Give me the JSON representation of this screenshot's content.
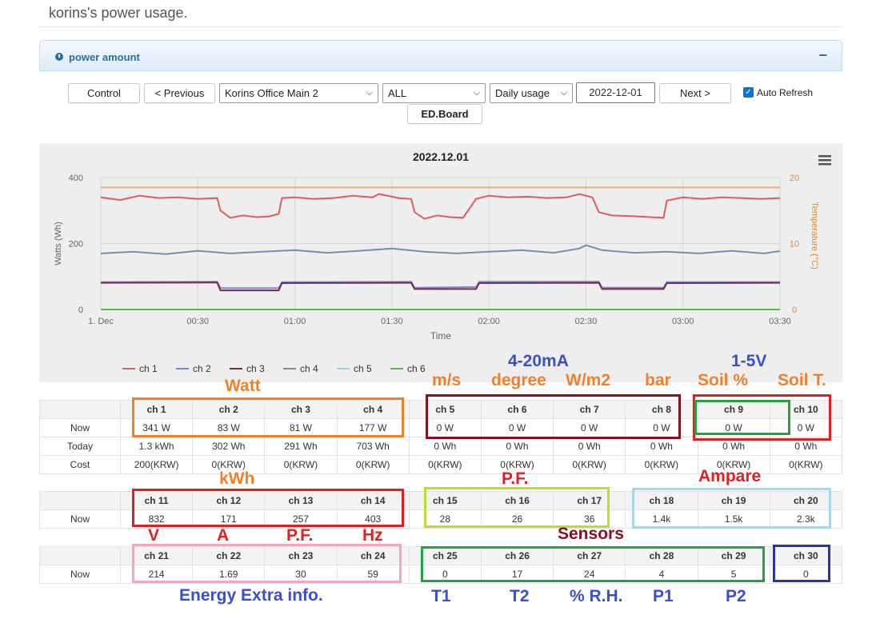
{
  "page": {
    "title": "korins's power usage."
  },
  "panel": {
    "title": "power amount",
    "collapse_label": "−"
  },
  "toolbar": {
    "control_label": "Control",
    "previous_label": "< Previous",
    "device_select": "Korins Office Main  2",
    "channel_select": "ALL",
    "period_select": "Daily usage",
    "date": "2022-12-01",
    "next_label": "Next >",
    "auto_refresh_label": "Auto Refresh",
    "auto_refresh_checked": true,
    "edboard_label": "ED.Board"
  },
  "chart_data": {
    "type": "line",
    "title": "2022.12.01",
    "xlabel": "Time",
    "ylabel": "Watts (Wh)",
    "ylabel_right": "Temperature (°C)",
    "ylim": [
      0,
      400
    ],
    "ylim_right": [
      0,
      20
    ],
    "yticks": [
      "0",
      "200",
      "400"
    ],
    "yticks_right": [
      "0",
      "10",
      "20"
    ],
    "x_minutes_range": [
      0,
      210
    ],
    "xticks": [
      {
        "label": "1. Dec",
        "minute": 0
      },
      {
        "label": "00:30",
        "minute": 30
      },
      {
        "label": "01:00",
        "minute": 60
      },
      {
        "label": "01:30",
        "minute": 90
      },
      {
        "label": "02:00",
        "minute": 120
      },
      {
        "label": "02:30",
        "minute": 150
      },
      {
        "label": "03:00",
        "minute": 180
      },
      {
        "label": "03:30",
        "minute": 210
      }
    ],
    "legend_position": "bottom",
    "grid": true,
    "menu_icon": "hamburger-icon",
    "series": [
      {
        "name": "ch 1",
        "color": "#e05c5c",
        "axis": "left",
        "points": [
          [
            0,
            340
          ],
          [
            6,
            332
          ],
          [
            12,
            345
          ],
          [
            18,
            338
          ],
          [
            24,
            340
          ],
          [
            30,
            335
          ],
          [
            36,
            338
          ],
          [
            37,
            300
          ],
          [
            40,
            278
          ],
          [
            44,
            285
          ],
          [
            48,
            280
          ],
          [
            52,
            282
          ],
          [
            55,
            290
          ],
          [
            56,
            338
          ],
          [
            60,
            340
          ],
          [
            66,
            335
          ],
          [
            72,
            338
          ],
          [
            78,
            345
          ],
          [
            84,
            340
          ],
          [
            86,
            350
          ],
          [
            90,
            342
          ],
          [
            92,
            338
          ],
          [
            96,
            335
          ],
          [
            97,
            295
          ],
          [
            100,
            275
          ],
          [
            104,
            285
          ],
          [
            108,
            280
          ],
          [
            112,
            278
          ],
          [
            116,
            335
          ],
          [
            120,
            345
          ],
          [
            126,
            340
          ],
          [
            132,
            342
          ],
          [
            138,
            338
          ],
          [
            144,
            340
          ],
          [
            148,
            350
          ],
          [
            150,
            345
          ],
          [
            152,
            340
          ],
          [
            154,
            295
          ],
          [
            158,
            285
          ],
          [
            164,
            283
          ],
          [
            170,
            280
          ],
          [
            174,
            278
          ],
          [
            175,
            330
          ],
          [
            180,
            340
          ],
          [
            186,
            335
          ],
          [
            192,
            340
          ],
          [
            198,
            338
          ],
          [
            204,
            335
          ],
          [
            210,
            338
          ]
        ]
      },
      {
        "name": "ch 2",
        "color": "#7a88d8",
        "axis": "left",
        "points": [
          [
            0,
            83
          ],
          [
            36,
            84
          ],
          [
            37,
            65
          ],
          [
            55,
            65
          ],
          [
            56,
            83
          ],
          [
            96,
            84
          ],
          [
            97,
            66
          ],
          [
            116,
            68
          ],
          [
            117,
            84
          ],
          [
            154,
            84
          ],
          [
            155,
            66
          ],
          [
            174,
            66
          ],
          [
            175,
            83
          ],
          [
            210,
            83
          ]
        ]
      },
      {
        "name": "ch 3",
        "color": "#7a2a44",
        "axis": "left",
        "points": [
          [
            0,
            81
          ],
          [
            36,
            82
          ],
          [
            37,
            58
          ],
          [
            55,
            58
          ],
          [
            56,
            80
          ],
          [
            96,
            81
          ],
          [
            97,
            62
          ],
          [
            116,
            62
          ],
          [
            117,
            80
          ],
          [
            154,
            81
          ],
          [
            155,
            62
          ],
          [
            174,
            62
          ],
          [
            175,
            80
          ],
          [
            210,
            81
          ]
        ]
      },
      {
        "name": "ch 4",
        "color": "#6f8fb0",
        "axis": "left",
        "points": [
          [
            0,
            170
          ],
          [
            10,
            175
          ],
          [
            20,
            168
          ],
          [
            30,
            178
          ],
          [
            40,
            170
          ],
          [
            50,
            175
          ],
          [
            60,
            180
          ],
          [
            70,
            172
          ],
          [
            80,
            178
          ],
          [
            90,
            185
          ],
          [
            100,
            175
          ],
          [
            110,
            170
          ],
          [
            120,
            175
          ],
          [
            130,
            180
          ],
          [
            140,
            172
          ],
          [
            148,
            185
          ],
          [
            150,
            195
          ],
          [
            155,
            180
          ],
          [
            165,
            172
          ],
          [
            175,
            175
          ],
          [
            185,
            170
          ],
          [
            195,
            178
          ],
          [
            205,
            170
          ],
          [
            210,
            177
          ]
        ]
      },
      {
        "name": "ch 5",
        "color": "#9fd0e8",
        "axis": "left",
        "points": [
          [
            0,
            0
          ],
          [
            210,
            0
          ]
        ]
      },
      {
        "name": "ch 6",
        "color": "#5ab84a",
        "axis": "left",
        "points": [
          [
            0,
            0
          ],
          [
            210,
            0
          ]
        ]
      },
      {
        "name": "Temperature",
        "color": "#e0b070",
        "axis": "right",
        "points": [
          [
            0,
            18.5
          ],
          [
            30,
            18.5
          ],
          [
            90,
            18.5
          ],
          [
            150,
            18.5
          ],
          [
            210,
            18.5
          ]
        ]
      }
    ]
  },
  "tables": {
    "row_now": "Now",
    "row_today": "Today",
    "row_cost": "Cost",
    "t1": {
      "headers": [
        "ch 1",
        "ch 2",
        "ch 3",
        "ch 4",
        "ch 5",
        "ch 6",
        "ch 7",
        "ch 8",
        "ch 9",
        "ch 10"
      ],
      "now": [
        "341 W",
        "83 W",
        "81 W",
        "177 W",
        "0 W",
        "0 W",
        "0 W",
        "0 W",
        "0 W",
        "0 W"
      ],
      "today": [
        "1.3 kWh",
        "302 Wh",
        "291 Wh",
        "703 Wh",
        "0 Wh",
        "0 Wh",
        "0 Wh",
        "0 Wh",
        "0 Wh",
        "0 Wh"
      ],
      "cost": [
        "200(KRW)",
        "0(KRW)",
        "0(KRW)",
        "0(KRW)",
        "0(KRW)",
        "0(KRW)",
        "0(KRW)",
        "0(KRW)",
        "0(KRW)",
        "0(KRW)"
      ]
    },
    "t2": {
      "headers": [
        "ch 11",
        "ch 12",
        "ch 13",
        "ch 14",
        "ch 15",
        "ch 16",
        "ch 17",
        "ch 18",
        "ch 19",
        "ch 20"
      ],
      "now": [
        "832",
        "171",
        "257",
        "403",
        "28",
        "26",
        "36",
        "1.4k",
        "1.5k",
        "2.3k"
      ]
    },
    "t3": {
      "headers": [
        "ch 21",
        "ch 22",
        "ch 23",
        "ch 24",
        "ch 25",
        "ch 26",
        "ch 27",
        "ch 28",
        "ch 29",
        "ch 30"
      ],
      "now": [
        "214",
        "1.69",
        "30",
        "59",
        "0",
        "17",
        "24",
        "4",
        "5",
        "0"
      ]
    }
  },
  "annotations": {
    "watt": "Watt",
    "ma_4_20": "4-20mA",
    "v_1_5": "1-5V",
    "ms": "m/s",
    "degree": "degree",
    "wm2": "W/m2",
    "bar": "bar",
    "soil_pct": "Soil %",
    "soil_t": "Soil T.",
    "kwh": "kWh",
    "pf_top": "P.F.",
    "ampare": "Ampare",
    "v": "V",
    "a": "A",
    "pf": "P.F.",
    "hz": "Hz",
    "sensors": "Sensors",
    "energy_extra": "Energy Extra info.",
    "t1": "T1",
    "t2": "T2",
    "rh": "% R.H.",
    "p1": "P1",
    "p2": "P2"
  },
  "colors": {
    "orange": "#f0812a",
    "red": "#e02020",
    "darkred": "#8a1020",
    "green": "#27a243",
    "lime": "#b9e02c",
    "lightblue": "#a9d6e6",
    "pink": "#f3a7bd",
    "navy": "#2a35a3",
    "blue_text": "#3a4fcc"
  }
}
